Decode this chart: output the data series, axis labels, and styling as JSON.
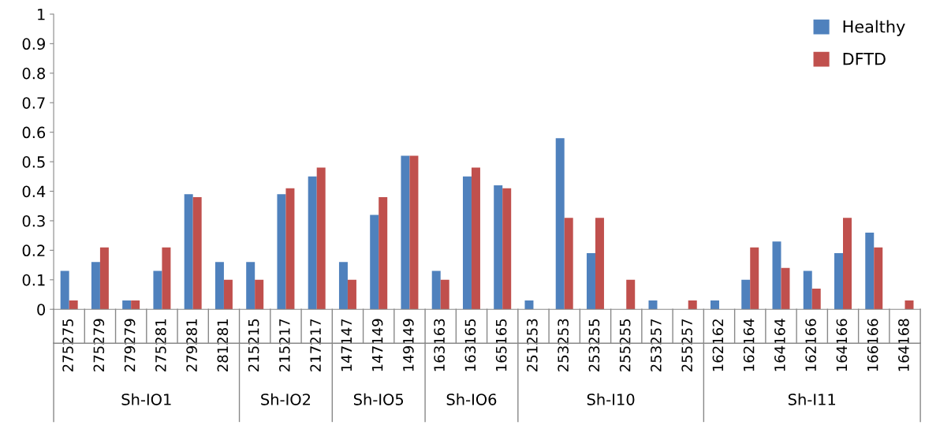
{
  "chart_data": {
    "type": "bar",
    "categories": [
      "275275",
      "275279",
      "279279",
      "275281",
      "279281",
      "281281",
      "215215",
      "215217",
      "217217",
      "147147",
      "147149",
      "149149",
      "163163",
      "163165",
      "165165",
      "251253",
      "253253",
      "253255",
      "255255",
      "253257",
      "255257",
      "162162",
      "162164",
      "164164",
      "162166",
      "164166",
      "166166",
      "164168"
    ],
    "series": [
      {
        "name": "Healthy",
        "color": "#4f81bd",
        "values": [
          0.13,
          0.16,
          0.03,
          0.13,
          0.39,
          0.16,
          0.16,
          0.39,
          0.45,
          0.16,
          0.32,
          0.52,
          0.13,
          0.45,
          0.42,
          0.03,
          0.58,
          0.19,
          0,
          0.03,
          0,
          0.03,
          0.1,
          0.23,
          0.13,
          0.19,
          0.26,
          0
        ]
      },
      {
        "name": "DFTD",
        "color": "#c0504d",
        "values": [
          0.03,
          0.21,
          0.03,
          0.21,
          0.38,
          0.1,
          0.1,
          0.41,
          0.48,
          0.1,
          0.38,
          0.52,
          0.1,
          0.48,
          0.41,
          0,
          0.31,
          0.31,
          0.1,
          0,
          0.03,
          0,
          0.21,
          0.14,
          0.07,
          0.31,
          0.21,
          0.03
        ]
      }
    ],
    "ylim": [
      0,
      1
    ],
    "yticks": [
      0,
      0.1,
      0.2,
      0.3,
      0.4,
      0.5,
      0.6,
      0.7,
      0.8,
      0.9,
      1
    ],
    "grid": false,
    "legend": "top right",
    "annotations": [
      "Sh-IO1",
      "Sh-IO2",
      "Sh-IO5",
      "Sh-IO6",
      "Sh-I10",
      "Sh-I11"
    ]
  }
}
